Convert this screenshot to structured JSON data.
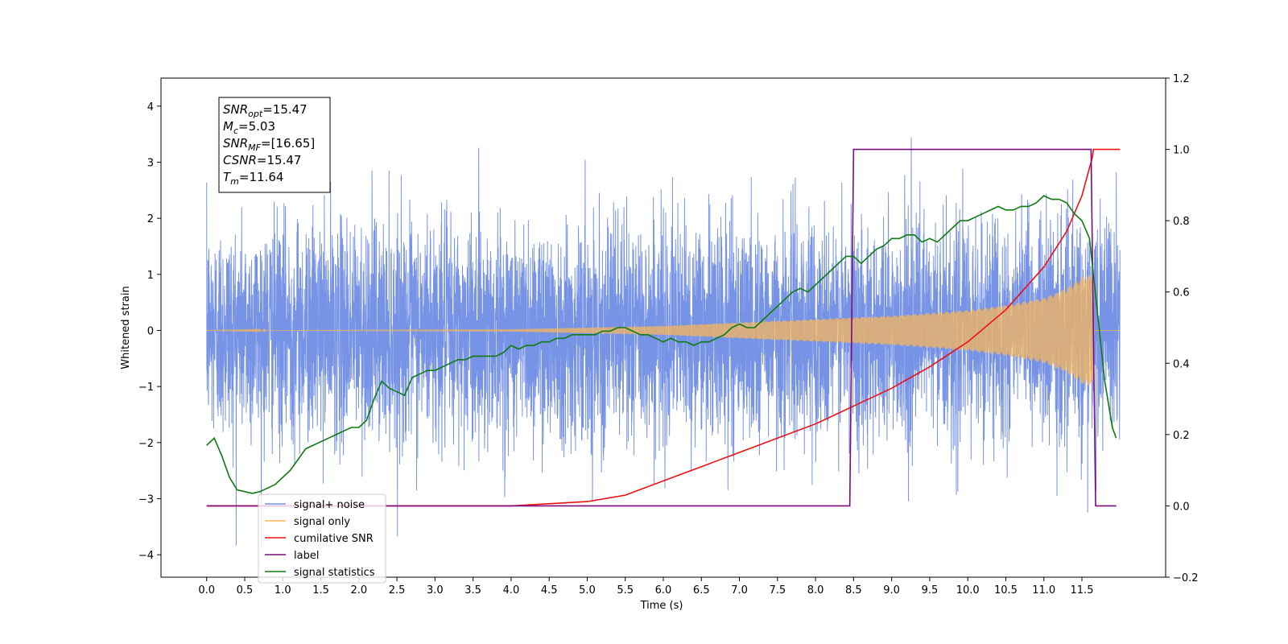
{
  "chart_data": {
    "type": "line",
    "title": "",
    "xlabel": "Time (s)",
    "ylabel": "Whitened strain",
    "y2label": "",
    "xlim": [
      -0.6,
      12.6
    ],
    "ylim": [
      -4.4,
      4.5
    ],
    "y2lim": [
      -0.2,
      1.2
    ],
    "x_ticks": [
      "0.0",
      "0.5",
      "1.0",
      "1.5",
      "2.0",
      "2.5",
      "3.0",
      "3.5",
      "4.0",
      "4.5",
      "5.0",
      "5.5",
      "6.0",
      "6.5",
      "7.0",
      "7.5",
      "8.0",
      "8.5",
      "9.0",
      "9.5",
      "10.0",
      "10.5",
      "11.0",
      "11.5"
    ],
    "y_ticks": [
      "4",
      "3",
      "2",
      "1",
      "0",
      "−1",
      "−2",
      "−3",
      "−4"
    ],
    "y2_ticks": [
      "1.2",
      "1.0",
      "0.8",
      "0.6",
      "0.4",
      "0.2",
      "0.0",
      "−0.2"
    ],
    "grid": false,
    "legend_position": "lower-left",
    "annotation": {
      "lines": [
        {
          "base": "SNR",
          "sub": "opt",
          "value": "=15.47"
        },
        {
          "base": "M",
          "sub": "c",
          "value": "=5.03"
        },
        {
          "base": "SNR",
          "sub": "MF",
          "value": "=[16.65]"
        },
        {
          "base": "CSNR",
          "sub": "",
          "value": "=15.47"
        },
        {
          "base": "T",
          "sub": "m",
          "value": "=11.64"
        }
      ]
    },
    "series": [
      {
        "name": "signal+ noise",
        "axis": "left",
        "color": "#7793e6",
        "x_range": [
          0.0,
          12.0
        ],
        "noise_std": 0.95,
        "extreme_range": [
          -3.9,
          4.1
        ]
      },
      {
        "name": "signal only",
        "axis": "left",
        "color": "#f5b65c",
        "x_range": [
          0.0,
          12.0
        ],
        "envelope_x": [
          0.0,
          4.0,
          6.0,
          8.0,
          9.0,
          10.0,
          10.5,
          11.0,
          11.3,
          11.5,
          11.64,
          11.66,
          12.0
        ],
        "envelope_y": [
          0.0,
          0.02,
          0.08,
          0.2,
          0.26,
          0.36,
          0.45,
          0.58,
          0.75,
          0.95,
          1.0,
          0.0,
          0.0
        ]
      },
      {
        "name": "cumilative SNR",
        "axis": "right",
        "color": "#ee1111",
        "x": [
          0.0,
          4.0,
          5.0,
          5.5,
          6.0,
          6.5,
          7.0,
          7.5,
          8.0,
          8.5,
          9.0,
          9.5,
          10.0,
          10.5,
          11.0,
          11.3,
          11.5,
          11.64,
          11.65,
          12.0
        ],
        "values": [
          0.0,
          0.0,
          0.012,
          0.03,
          0.07,
          0.11,
          0.15,
          0.19,
          0.23,
          0.28,
          0.33,
          0.39,
          0.46,
          0.55,
          0.67,
          0.77,
          0.87,
          0.98,
          1.0,
          1.0
        ]
      },
      {
        "name": "label",
        "axis": "right",
        "color": "#7a0a7e",
        "x": [
          0.0,
          8.45,
          8.5,
          11.62,
          11.68,
          11.95
        ],
        "values": [
          0.0,
          0.0,
          1.0,
          1.0,
          0.0,
          0.0
        ]
      },
      {
        "name": "signal statistics",
        "axis": "right",
        "color": "#0f7a0f",
        "x": [
          0.0,
          0.1,
          0.2,
          0.3,
          0.4,
          0.5,
          0.6,
          0.7,
          0.8,
          0.9,
          1.0,
          1.1,
          1.2,
          1.3,
          1.4,
          1.5,
          1.6,
          1.7,
          1.8,
          1.9,
          2.0,
          2.1,
          2.2,
          2.3,
          2.4,
          2.5,
          2.6,
          2.7,
          2.8,
          2.9,
          3.0,
          3.1,
          3.2,
          3.3,
          3.4,
          3.5,
          3.6,
          3.7,
          3.8,
          3.9,
          4.0,
          4.1,
          4.2,
          4.3,
          4.4,
          4.5,
          4.6,
          4.7,
          4.8,
          4.9,
          5.0,
          5.1,
          5.2,
          5.3,
          5.4,
          5.5,
          5.6,
          5.7,
          5.8,
          5.9,
          6.0,
          6.1,
          6.2,
          6.3,
          6.4,
          6.5,
          6.6,
          6.7,
          6.8,
          6.9,
          7.0,
          7.1,
          7.2,
          7.3,
          7.4,
          7.5,
          7.6,
          7.7,
          7.8,
          7.9,
          8.0,
          8.1,
          8.2,
          8.3,
          8.4,
          8.5,
          8.6,
          8.7,
          8.8,
          8.9,
          9.0,
          9.1,
          9.2,
          9.3,
          9.4,
          9.5,
          9.6,
          9.7,
          9.8,
          9.9,
          10.0,
          10.1,
          10.2,
          10.3,
          10.4,
          10.5,
          10.6,
          10.7,
          10.8,
          10.9,
          11.0,
          11.1,
          11.2,
          11.3,
          11.4,
          11.5,
          11.6,
          11.7,
          11.8,
          11.9,
          11.95
        ],
        "values": [
          0.17,
          0.19,
          0.14,
          0.08,
          0.045,
          0.04,
          0.035,
          0.04,
          0.05,
          0.06,
          0.08,
          0.1,
          0.13,
          0.16,
          0.17,
          0.18,
          0.19,
          0.2,
          0.21,
          0.22,
          0.22,
          0.24,
          0.3,
          0.35,
          0.33,
          0.32,
          0.31,
          0.36,
          0.37,
          0.38,
          0.38,
          0.39,
          0.4,
          0.41,
          0.41,
          0.42,
          0.42,
          0.42,
          0.42,
          0.43,
          0.45,
          0.44,
          0.45,
          0.45,
          0.46,
          0.46,
          0.47,
          0.47,
          0.48,
          0.48,
          0.48,
          0.48,
          0.49,
          0.49,
          0.5,
          0.5,
          0.49,
          0.48,
          0.48,
          0.47,
          0.46,
          0.47,
          0.46,
          0.46,
          0.45,
          0.46,
          0.46,
          0.47,
          0.48,
          0.5,
          0.51,
          0.5,
          0.5,
          0.52,
          0.54,
          0.56,
          0.58,
          0.6,
          0.61,
          0.6,
          0.62,
          0.64,
          0.66,
          0.68,
          0.7,
          0.7,
          0.68,
          0.7,
          0.72,
          0.73,
          0.75,
          0.75,
          0.76,
          0.76,
          0.74,
          0.75,
          0.74,
          0.76,
          0.78,
          0.8,
          0.8,
          0.81,
          0.82,
          0.83,
          0.84,
          0.83,
          0.83,
          0.84,
          0.84,
          0.85,
          0.87,
          0.86,
          0.86,
          0.85,
          0.82,
          0.8,
          0.75,
          0.55,
          0.35,
          0.22,
          0.19
        ]
      }
    ]
  }
}
